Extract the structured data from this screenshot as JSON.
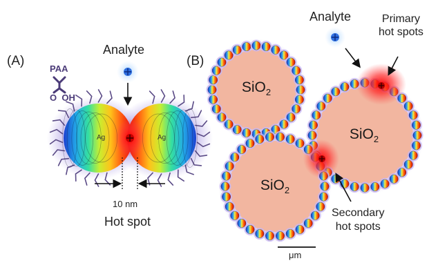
{
  "panel_a": {
    "label": "(A)",
    "analyte_label": "Analyte",
    "polymer_label": "PAA",
    "polymer_groups": "O  OH",
    "particle_label": "Ag",
    "gap_label": "10 nm",
    "hotspot_label": "Hot spot"
  },
  "panel_b": {
    "label": "(B)",
    "analyte_label": "Analyte",
    "primary_label_line1": "Primary",
    "primary_label_line2": "hot spots",
    "secondary_label_line1": "Secondary",
    "secondary_label_line2": "hot spots",
    "sphere_label": "SiO",
    "sphere_subscript": "2",
    "scale_label": "μm"
  },
  "colors": {
    "silica": "#f2b6a0",
    "hot_spot": "#ff1a1a",
    "halo": "#8a6fd6",
    "analyte": "#3f7fe0"
  }
}
